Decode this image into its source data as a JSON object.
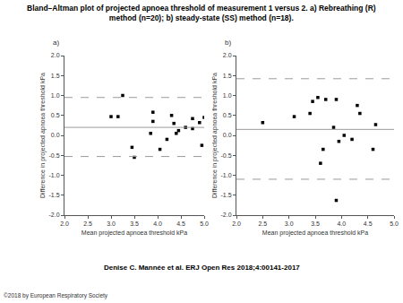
{
  "title_lines": [
    "Bland–Altman plot of projected apnoea threshold of measurement 1 versus 2. a) Rebreathing (R)",
    "method (n=20); b) steady-state (SS) method (n=18)."
  ],
  "citation": "Denise C. Mannée et al. ERJ Open Res 2018;4:00141-2017",
  "copyright": "©2018 by European Respiratory Society",
  "chart_data": [
    {
      "type": "scatter",
      "title": "a)",
      "xlabel": "Mean projected apnoea threshold kPa",
      "ylabel": "Difference in projected apnoea threshold kPa",
      "x": [
        3.0,
        3.15,
        3.25,
        3.45,
        3.5,
        3.85,
        3.9,
        3.9,
        4.05,
        4.3,
        4.35,
        4.4,
        4.45,
        4.6,
        4.75,
        4.75,
        4.9,
        4.95,
        5.0,
        4.2
      ],
      "values": [
        0.47,
        0.47,
        1.0,
        -0.3,
        -0.55,
        0.05,
        0.35,
        0.58,
        -0.35,
        0.5,
        0.3,
        0.05,
        0.12,
        0.2,
        0.42,
        0.17,
        0.32,
        -0.25,
        0.45,
        -0.1
      ],
      "mean_difference": 0.2,
      "limits_of_agreement": [
        -0.53,
        0.95
      ],
      "color": "#000000",
      "marker": "square",
      "xlim": [
        2.0,
        5.0
      ],
      "ylim": [
        -2.0,
        2.0
      ],
      "xticks": [
        {
          "value": 2.0,
          "label": "2.0"
        },
        2.5,
        {
          "value": 3.0,
          "label": "3.0"
        },
        3.5,
        {
          "value": 4.0,
          "label": "4.0"
        },
        4.5,
        {
          "value": 5.0,
          "label": "5.0"
        }
      ],
      "yticks": [
        {
          "value": -2.0,
          "label": "-2.0"
        },
        -1.5,
        {
          "value": -1.0,
          "label": "-1.0"
        },
        -0.5,
        {
          "value": 0,
          "label": "0.0"
        },
        0.5,
        {
          "value": 1.0,
          "label": "1.0"
        },
        1.5,
        {
          "value": 2.0,
          "label": "2.0"
        }
      ],
      "grid": false
    },
    {
      "type": "scatter",
      "title": "b)",
      "xlabel": "Mean projected apnoea threshold kPa",
      "ylabel": "Difference in projected apnoea threshold kPa",
      "x": [
        2.5,
        3.1,
        3.4,
        3.45,
        3.55,
        3.6,
        3.65,
        3.7,
        3.85,
        3.9,
        3.9,
        3.95,
        4.05,
        4.2,
        4.3,
        4.35,
        4.6,
        4.65
      ],
      "values": [
        0.32,
        0.47,
        0.55,
        0.85,
        0.95,
        -0.7,
        -0.35,
        0.9,
        0.2,
        0.9,
        -1.63,
        -0.15,
        0.0,
        -0.1,
        0.75,
        0.55,
        -0.35,
        0.27
      ],
      "mean_difference": 0.15,
      "limits_of_agreement": [
        -1.1,
        1.42
      ],
      "color": "#000000",
      "marker": "square",
      "xlim": [
        2.0,
        5.0
      ],
      "ylim": [
        -2.0,
        2.0
      ],
      "xticks": [
        {
          "value": 2.0,
          "label": "2.0"
        },
        2.5,
        {
          "value": 3.0,
          "label": "3.0"
        },
        3.5,
        {
          "value": 4.0,
          "label": "4.0"
        },
        4.5,
        {
          "value": 5.0,
          "label": "5.0"
        }
      ],
      "yticks": [
        {
          "value": -2.0,
          "label": "-2.0"
        },
        -1.5,
        {
          "value": -1.0,
          "label": "-1.0"
        },
        -0.5,
        {
          "value": 0,
          "label": "0.0"
        },
        0.5,
        {
          "value": 1.0,
          "label": "1.0"
        },
        1.5,
        {
          "value": 2.0,
          "label": "2.0"
        }
      ],
      "grid": false
    }
  ]
}
